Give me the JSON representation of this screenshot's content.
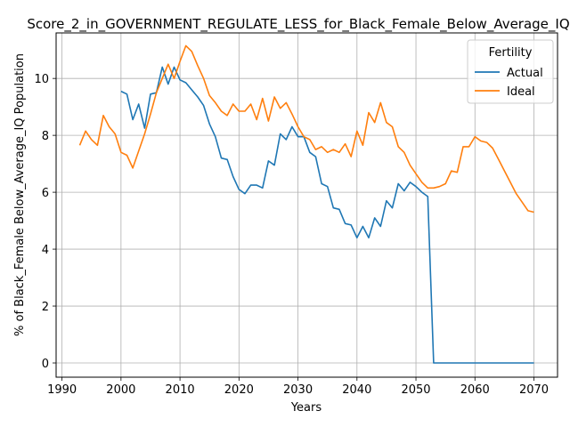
{
  "chart_data": {
    "type": "line",
    "title": "Score_2_in_GOVERNMENT_REGULATE_LESS_for_Black_Female_Below_Average_IQ",
    "xlabel": "Years",
    "ylabel": "% of Black_Female Below_Average_IQ Population",
    "xlim": [
      1989,
      2074
    ],
    "ylim": [
      -0.5,
      11.6
    ],
    "xticks": [
      1990,
      2000,
      2010,
      2020,
      2030,
      2040,
      2050,
      2060,
      2070
    ],
    "yticks": [
      0,
      2,
      4,
      6,
      8,
      10
    ],
    "grid": true,
    "legend": {
      "title": "Fertility",
      "placement": "top-right"
    },
    "series": [
      {
        "name": "Actual",
        "color": "#1f77b4",
        "x": [
          2000,
          2001,
          2002,
          2003,
          2004,
          2005,
          2006,
          2007,
          2008,
          2009,
          2010,
          2011,
          2012,
          2013,
          2014,
          2015,
          2016,
          2017,
          2018,
          2019,
          2020,
          2021,
          2022,
          2023,
          2024,
          2025,
          2026,
          2027,
          2028,
          2029,
          2030,
          2031,
          2032,
          2033,
          2034,
          2035,
          2036,
          2037,
          2038,
          2039,
          2040,
          2041,
          2042,
          2043,
          2044,
          2045,
          2046,
          2047,
          2048,
          2049,
          2050,
          2051,
          2052,
          2053,
          2054,
          2055,
          2056,
          2057,
          2058,
          2059,
          2060,
          2061,
          2062,
          2063,
          2064,
          2065,
          2066,
          2067,
          2068,
          2069,
          2070
        ],
        "y": [
          9.55,
          9.45,
          8.55,
          9.1,
          8.25,
          9.45,
          9.5,
          10.4,
          9.8,
          10.4,
          9.95,
          9.85,
          9.6,
          9.35,
          9.05,
          8.4,
          7.95,
          7.2,
          7.15,
          6.55,
          6.1,
          5.95,
          6.25,
          6.25,
          6.15,
          7.1,
          6.95,
          8.05,
          7.85,
          8.3,
          7.95,
          7.95,
          7.4,
          7.25,
          6.3,
          6.2,
          5.45,
          5.4,
          4.9,
          4.85,
          4.4,
          4.8,
          4.4,
          5.1,
          4.8,
          5.7,
          5.45,
          6.3,
          6.05,
          6.35,
          6.2,
          6.0,
          5.85,
          0,
          0,
          0,
          0,
          0,
          0,
          0,
          0,
          0,
          0,
          0,
          0,
          0,
          0,
          0,
          0,
          0,
          0
        ]
      },
      {
        "name": "Ideal",
        "color": "#ff7f0e",
        "x": [
          1993,
          1994,
          1995,
          1996,
          1997,
          1998,
          1999,
          2000,
          2001,
          2002,
          2003,
          2004,
          2005,
          2006,
          2007,
          2008,
          2009,
          2010,
          2011,
          2012,
          2013,
          2014,
          2015,
          2016,
          2017,
          2018,
          2019,
          2020,
          2021,
          2022,
          2023,
          2024,
          2025,
          2026,
          2027,
          2028,
          2029,
          2030,
          2031,
          2032,
          2033,
          2034,
          2035,
          2036,
          2037,
          2038,
          2039,
          2040,
          2041,
          2042,
          2043,
          2044,
          2045,
          2046,
          2047,
          2048,
          2049,
          2050,
          2051,
          2052,
          2053,
          2054,
          2055,
          2056,
          2057,
          2058,
          2059,
          2060,
          2061,
          2062,
          2063,
          2064,
          2065,
          2066,
          2067,
          2068,
          2069,
          2070
        ],
        "y": [
          7.65,
          8.15,
          7.85,
          7.65,
          8.7,
          8.3,
          8.05,
          7.4,
          7.3,
          6.85,
          7.45,
          8.05,
          8.75,
          9.5,
          10.0,
          10.5,
          10.0,
          10.6,
          11.15,
          10.95,
          10.45,
          10.0,
          9.4,
          9.15,
          8.85,
          8.7,
          9.1,
          8.85,
          8.85,
          9.1,
          8.55,
          9.3,
          8.5,
          9.35,
          8.95,
          9.15,
          8.75,
          8.3,
          7.95,
          7.85,
          7.5,
          7.6,
          7.4,
          7.5,
          7.4,
          7.7,
          7.25,
          8.15,
          7.65,
          8.8,
          8.45,
          9.15,
          8.45,
          8.3,
          7.6,
          7.4,
          6.95,
          6.65,
          6.35,
          6.15,
          6.15,
          6.2,
          6.3,
          6.75,
          6.7,
          7.6,
          7.6,
          7.95,
          7.8,
          7.75,
          7.55,
          7.15,
          6.75,
          6.35,
          5.95,
          5.65,
          5.35,
          5.3
        ]
      }
    ]
  }
}
